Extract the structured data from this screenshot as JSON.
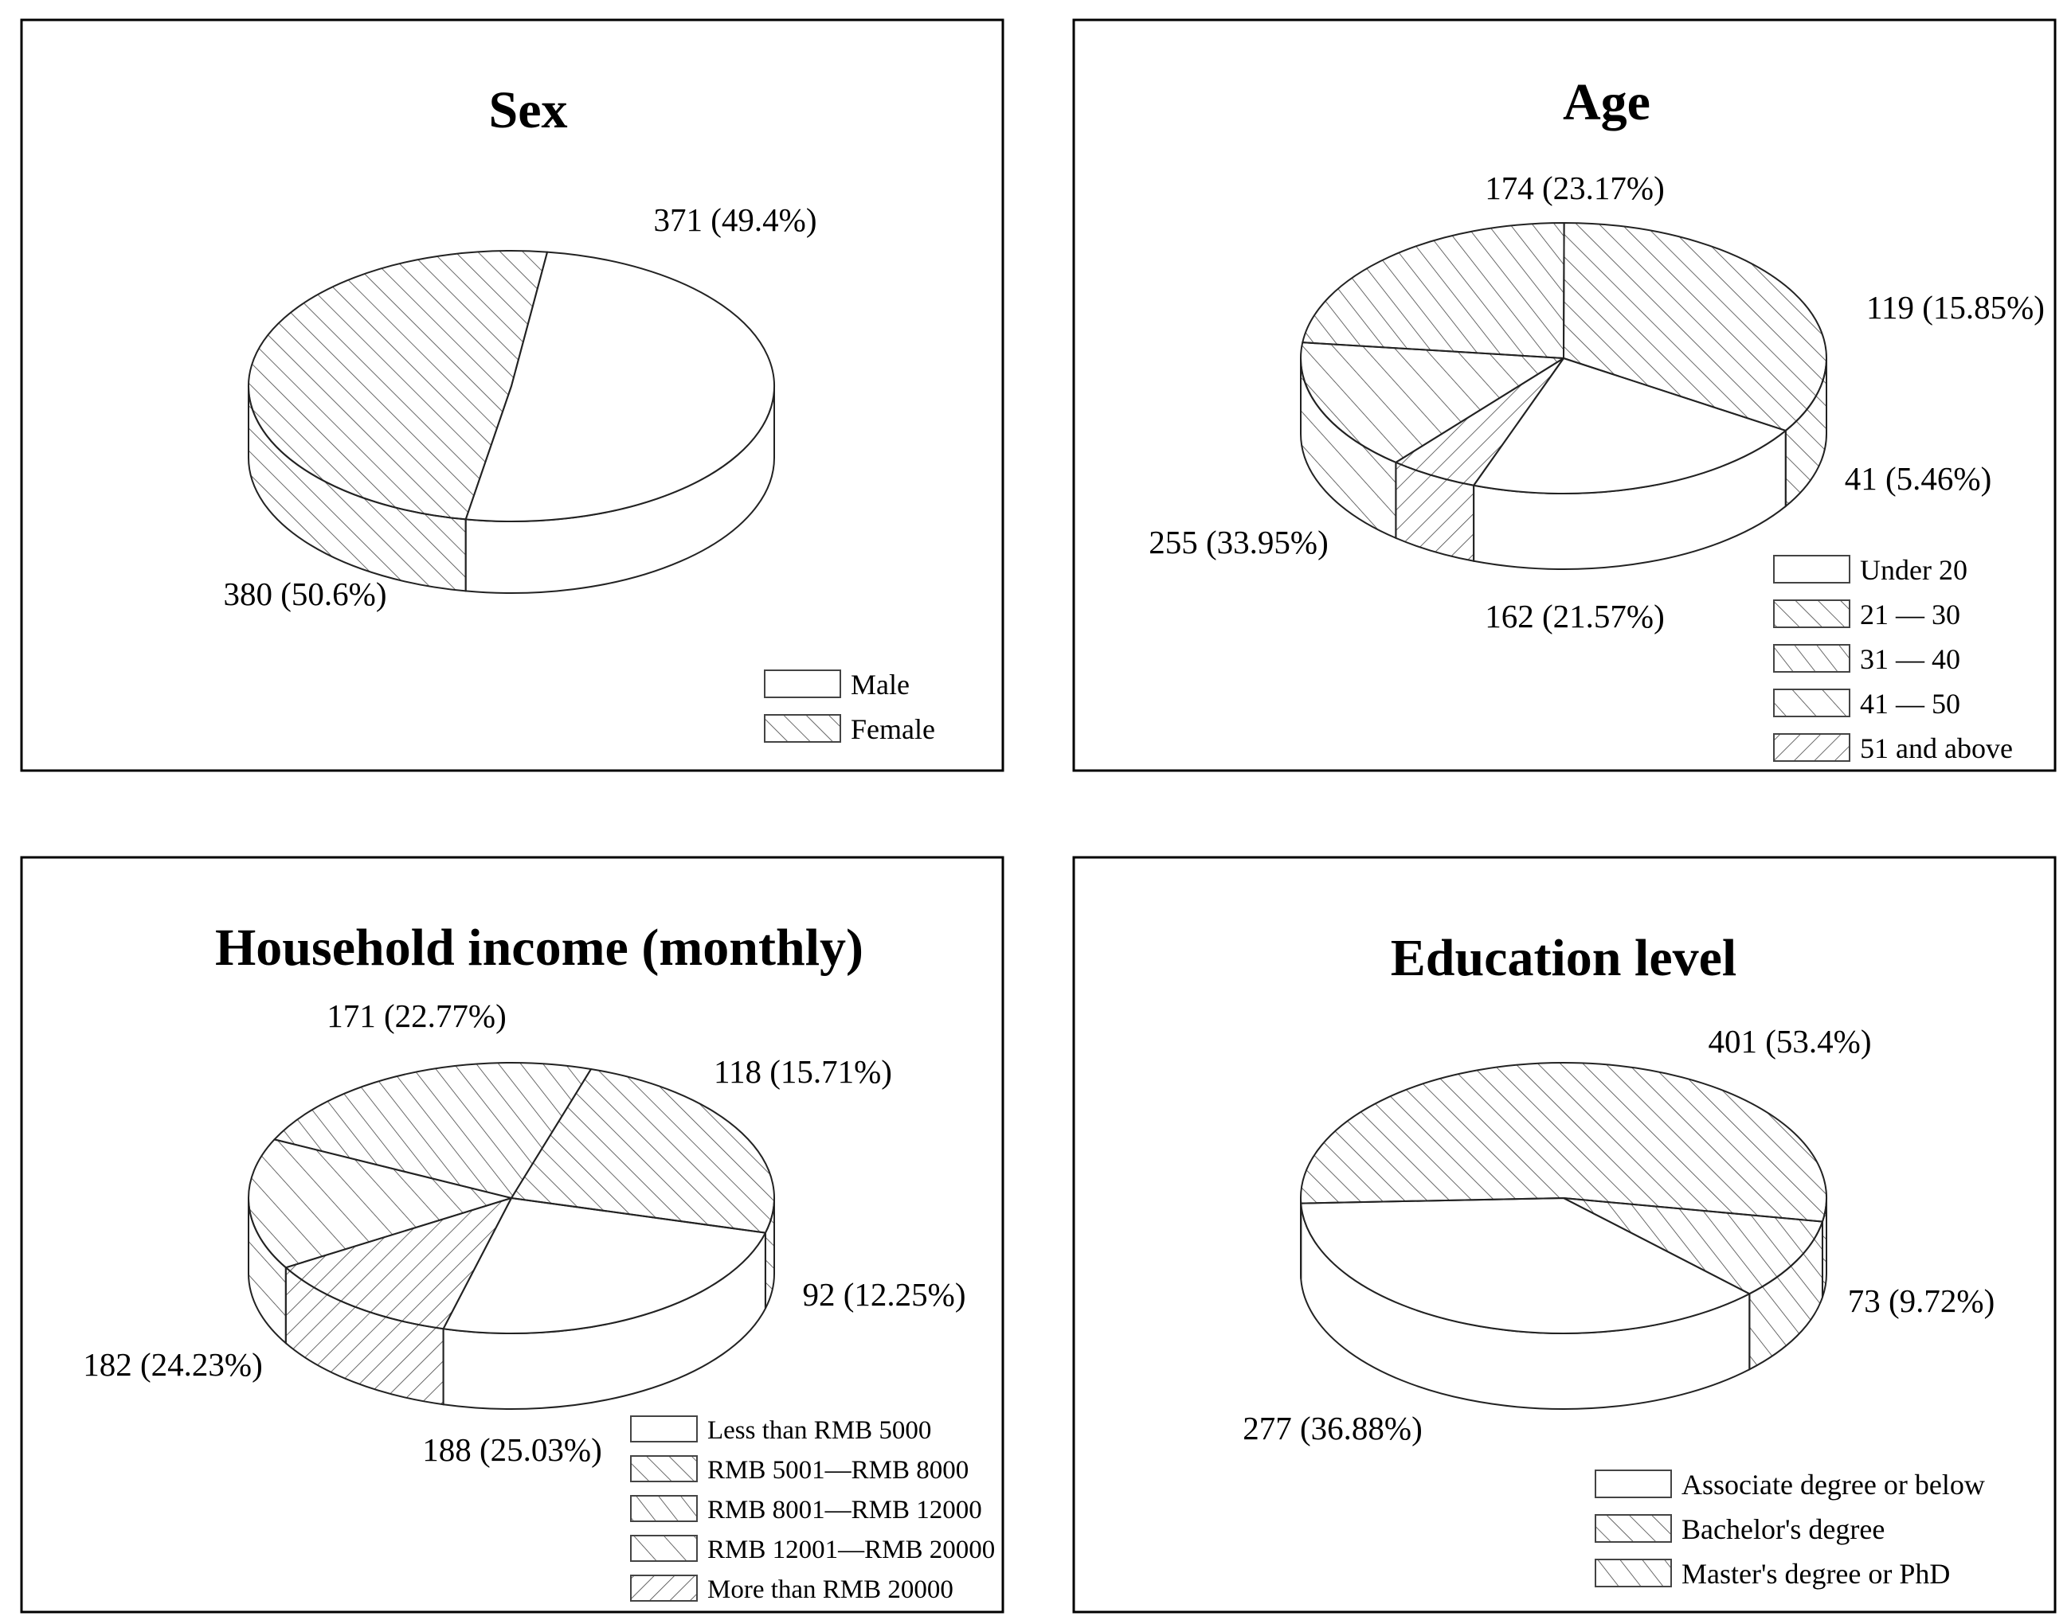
{
  "chart_data": [
    {
      "type": "pie",
      "title": "Sex",
      "categories": [
        "Male",
        "Female"
      ],
      "values": [
        380,
        371
      ],
      "labels": [
        "380 (50.6%)",
        "371 (49.4%)"
      ],
      "legend": "bottom-right"
    },
    {
      "type": "pie",
      "title": "Age",
      "categories": [
        "Under 20",
        "21 — 30",
        "31 — 40",
        "41 — 50",
        "51 and above"
      ],
      "values": [
        162,
        255,
        174,
        119,
        41
      ],
      "labels": [
        "162 (21.57%)",
        "255 (33.95%)",
        "174 (23.17%)",
        "119 (15.85%)",
        "41 (5.46%)"
      ],
      "legend": "bottom-right"
    },
    {
      "type": "pie",
      "title": "Household income (monthly)",
      "categories": [
        "Less than RMB 5000",
        "RMB 5001—RMB 8000",
        "RMB 8001—RMB 12000",
        "RMB 12001—RMB 20000",
        "More than RMB 20000"
      ],
      "values": [
        188,
        182,
        171,
        118,
        92
      ],
      "labels": [
        "188 (25.03%)",
        "182 (24.23%)",
        "171 (22.77%)",
        "118 (15.71%)",
        "92 (12.25%)"
      ],
      "legend": "bottom-right"
    },
    {
      "type": "pie",
      "title": "Education level",
      "categories": [
        "Associate degree or below",
        "Bachelor's degree",
        "Master's degree or PhD"
      ],
      "values": [
        277,
        401,
        73
      ],
      "labels": [
        "277 (36.88%)",
        "401 (53.4%)",
        "73 (9.72%)"
      ],
      "legend": "bottom-right"
    }
  ]
}
